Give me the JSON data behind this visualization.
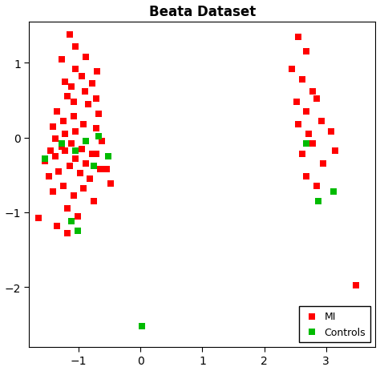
{
  "title": "Beata Dataset",
  "title_fontsize": 12,
  "title_fontweight": "bold",
  "xlim": [
    -1.8,
    3.8
  ],
  "ylim": [
    -2.8,
    1.55
  ],
  "xticks": [
    -1,
    0,
    1,
    2,
    3
  ],
  "yticks": [
    -2,
    -1,
    0,
    1
  ],
  "mi_color": "#FF0000",
  "controls_color": "#00BB00",
  "marker": "s",
  "markersize": 6,
  "background_color": "#FFFFFF",
  "mi_x": [
    -1.15,
    -1.05,
    -1.28,
    -1.05,
    -0.88,
    -0.7,
    -1.22,
    -1.12,
    -0.95,
    -0.78,
    -1.18,
    -1.08,
    -0.9,
    -0.72,
    -1.35,
    -0.85,
    -0.68,
    -1.42,
    -1.25,
    -1.08,
    -0.92,
    -1.38,
    -1.22,
    -1.05,
    -0.88,
    -0.72,
    -1.45,
    -1.28,
    -1.12,
    -0.95,
    -0.78,
    -0.62,
    -1.55,
    -1.38,
    -1.22,
    -1.05,
    -0.88,
    -0.72,
    -0.55,
    -1.48,
    -1.32,
    -1.15,
    -0.98,
    -0.82,
    -0.65,
    -0.48,
    -1.42,
    -1.25,
    -1.08,
    -0.92,
    -0.75,
    -1.18,
    -1.02,
    -1.35,
    -1.18,
    -1.65,
    2.55,
    2.68,
    2.45,
    2.62,
    2.78,
    2.52,
    2.68,
    2.85,
    2.55,
    2.72,
    2.92,
    3.08,
    2.62,
    2.78,
    2.95,
    3.15,
    2.68,
    2.85,
    3.48
  ],
  "mi_y": [
    1.38,
    1.22,
    1.05,
    0.92,
    1.08,
    0.88,
    0.75,
    0.68,
    0.82,
    0.72,
    0.55,
    0.48,
    0.62,
    0.52,
    0.35,
    0.45,
    0.32,
    0.15,
    0.22,
    0.28,
    0.18,
    -0.02,
    0.05,
    0.08,
    -0.05,
    0.12,
    -0.18,
    -0.12,
    -0.08,
    -0.15,
    -0.22,
    -0.05,
    -0.32,
    -0.25,
    -0.18,
    -0.28,
    -0.35,
    -0.22,
    -0.42,
    -0.52,
    -0.45,
    -0.38,
    -0.48,
    -0.55,
    -0.42,
    -0.62,
    -0.72,
    -0.65,
    -0.78,
    -0.68,
    -0.85,
    -0.95,
    -1.05,
    -1.18,
    -1.28,
    -1.08,
    1.35,
    1.15,
    0.92,
    0.78,
    0.62,
    0.48,
    0.35,
    0.52,
    0.18,
    0.05,
    0.22,
    0.08,
    -0.22,
    -0.08,
    -0.35,
    -0.18,
    -0.52,
    -0.65,
    -1.98
  ],
  "controls_x": [
    -1.55,
    -1.28,
    -1.05,
    -0.88,
    -0.75,
    -0.68,
    -0.52,
    -1.12,
    -1.02,
    0.02,
    2.68,
    2.88,
    3.12
  ],
  "controls_y": [
    -0.28,
    -0.08,
    -0.18,
    -0.05,
    -0.38,
    0.02,
    -0.25,
    -1.12,
    -1.25,
    -2.52,
    -0.08,
    -0.85,
    -0.72
  ]
}
